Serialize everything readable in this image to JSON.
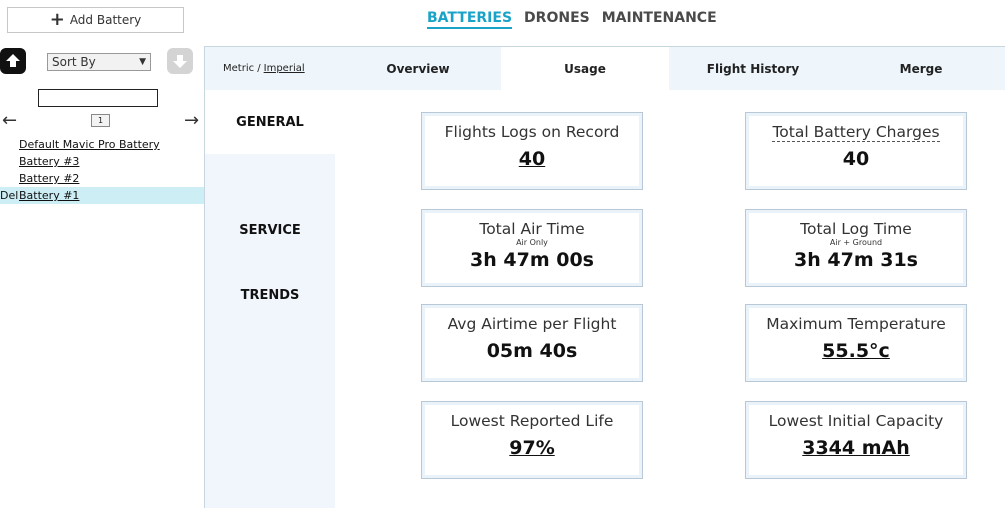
{
  "top": {
    "add_battery": "Add Battery",
    "nav": [
      "BATTERIES",
      "DRONES",
      "MAINTENANCE"
    ]
  },
  "sidebar": {
    "sort_label": "Sort By",
    "page": "1",
    "batteries": [
      {
        "label": "Default Mavic Pro Battery"
      },
      {
        "label": "Battery #3"
      },
      {
        "label": "Battery #2"
      },
      {
        "label": "Battery #1",
        "del": "Del"
      }
    ]
  },
  "tabs": {
    "units_metric": "Metric /",
    "units_imperial": "Imperial",
    "overview": "Overview",
    "usage": "Usage",
    "flight_history": "Flight History",
    "merge": "Merge"
  },
  "side_menu": {
    "general": "GENERAL",
    "service": "SERVICE",
    "trends": "TRENDS"
  },
  "stats": {
    "flight_logs": {
      "label": "Flights Logs on Record",
      "value": "40"
    },
    "battery_charges": {
      "label": "Total Battery Charges",
      "value": "40"
    },
    "air_time": {
      "label": "Total Air Time",
      "sub": "Air Only",
      "value": "3h 47m 00s"
    },
    "log_time": {
      "label": "Total Log Time",
      "sub": "Air + Ground",
      "value": "3h 47m 31s"
    },
    "avg_airtime": {
      "label": "Avg Airtime per Flight",
      "value": "05m 40s"
    },
    "max_temp": {
      "label": "Maximum Temperature",
      "value": "55.5°c"
    },
    "lowest_life": {
      "label": "Lowest Reported Life",
      "value": "97%"
    },
    "lowest_capacity": {
      "label": "Lowest Initial Capacity",
      "value": "3344 mAh"
    }
  }
}
